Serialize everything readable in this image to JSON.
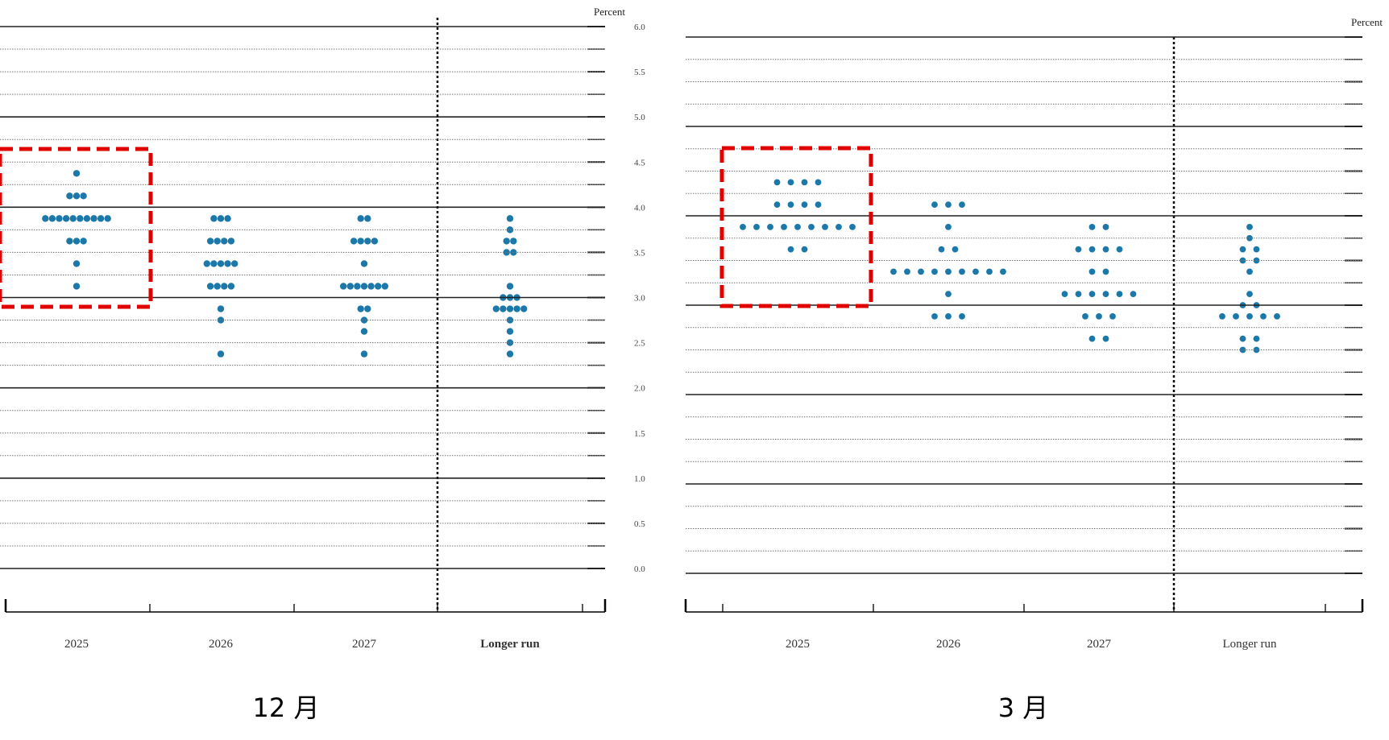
{
  "chart_data": [
    {
      "type": "dot",
      "ylabel": "Percent",
      "caption": "12 月",
      "color": "#1b78a8",
      "grid": true,
      "categories": [
        "2025",
        "2026",
        "2027",
        "Longer run"
      ],
      "ylim": [
        0,
        6
      ],
      "yticks": [
        {
          "value": 0,
          "label": "0.0"
        },
        0.5,
        {
          "value": 1,
          "label": "1.0"
        },
        1.5,
        {
          "value": 2,
          "label": "2.0"
        },
        2.5,
        {
          "value": 3,
          "label": "3.0"
        },
        3.5,
        {
          "value": 4,
          "label": "4.0"
        },
        4.5,
        {
          "value": 5,
          "label": "5.0"
        },
        5.5,
        {
          "value": 6,
          "label": "6.0"
        }
      ],
      "values": [
        [
          4.375,
          4.125,
          4.125,
          4.125,
          3.875,
          3.875,
          3.875,
          3.875,
          3.875,
          3.875,
          3.875,
          3.875,
          3.875,
          3.875,
          3.625,
          3.625,
          3.625,
          3.375,
          3.125
        ],
        [
          3.875,
          3.875,
          3.875,
          3.625,
          3.625,
          3.625,
          3.625,
          3.375,
          3.375,
          3.375,
          3.375,
          3.375,
          3.125,
          3.125,
          3.125,
          3.125,
          2.875,
          2.75,
          2.375
        ],
        [
          3.875,
          3.875,
          3.625,
          3.625,
          3.625,
          3.625,
          3.375,
          3.125,
          3.125,
          3.125,
          3.125,
          3.125,
          3.125,
          3.125,
          2.875,
          2.875,
          2.75,
          2.625,
          2.375
        ],
        [
          3.875,
          3.75,
          3.625,
          3.625,
          3.5,
          3.5,
          3.125,
          3.0,
          3.0,
          3.0,
          2.875,
          2.875,
          2.875,
          2.875,
          2.875,
          2.75,
          2.625,
          2.5,
          2.375
        ]
      ]
    },
    {
      "type": "dot",
      "ylabel": "Percent",
      "caption": "3 月",
      "color": "#1b78a8",
      "grid": true,
      "categories": [
        "2025",
        "2026",
        "2027",
        "Longer run"
      ],
      "ylim": [
        0,
        6
      ],
      "yticks": [
        {
          "value": 0,
          "label": "0.0"
        },
        0.5,
        {
          "value": 1,
          "label": "1.0"
        },
        1.5,
        {
          "value": 2,
          "label": "2.0"
        },
        2.5,
        {
          "value": 3,
          "label": "3.0"
        },
        3.5,
        {
          "value": 4,
          "label": "4.0"
        },
        4.5,
        {
          "value": 5,
          "label": "5.0"
        },
        5.5,
        {
          "value": 6,
          "label": "6.0"
        }
      ],
      "values": [
        [
          4.375,
          4.375,
          4.375,
          4.375,
          4.125,
          4.125,
          4.125,
          4.125,
          3.875,
          3.875,
          3.875,
          3.875,
          3.875,
          3.875,
          3.875,
          3.875,
          3.875,
          3.625,
          3.625
        ],
        [
          4.125,
          4.125,
          4.125,
          3.875,
          3.625,
          3.625,
          3.375,
          3.375,
          3.375,
          3.375,
          3.375,
          3.375,
          3.375,
          3.375,
          3.375,
          3.125,
          2.875,
          2.875,
          2.875
        ],
        [
          3.875,
          3.875,
          3.625,
          3.625,
          3.625,
          3.625,
          3.375,
          3.375,
          3.125,
          3.125,
          3.125,
          3.125,
          3.125,
          3.125,
          2.875,
          2.875,
          2.875,
          2.625,
          2.625
        ],
        [
          3.875,
          3.75,
          3.625,
          3.625,
          3.5,
          3.5,
          3.375,
          3.125,
          3.0,
          3.0,
          2.875,
          2.875,
          2.875,
          2.875,
          2.875,
          2.625,
          2.625,
          2.5,
          2.5
        ]
      ]
    }
  ]
}
